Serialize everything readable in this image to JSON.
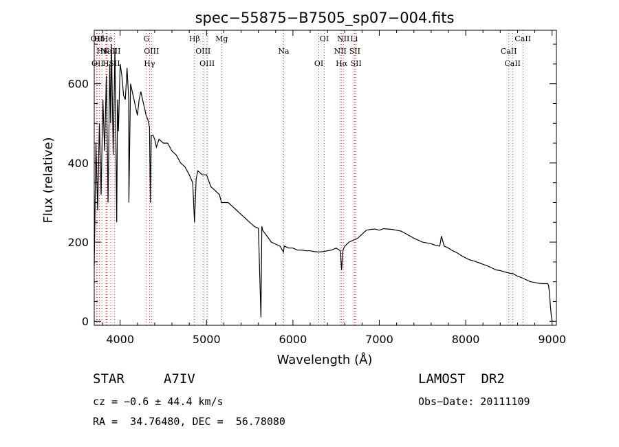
{
  "chart_data": {
    "type": "line",
    "title": "spec−55875−B7505_sp07−004.fits",
    "xlabel": "Wavelength (Å)",
    "ylabel": "Flux (relative)",
    "xlim": [
      3700,
      9050
    ],
    "ylim": [
      -10,
      735
    ],
    "xticks": [
      4000,
      5000,
      6000,
      7000,
      8000,
      9000
    ],
    "yticks": [
      0,
      200,
      400,
      600
    ],
    "grid": false,
    "series": [
      {
        "color": "#000000",
        "x": [
          3700,
          3720,
          3740,
          3760,
          3780,
          3800,
          3820,
          3840,
          3860,
          3880,
          3890,
          3900,
          3920,
          3940,
          3960,
          3970,
          3980,
          4000,
          4020,
          4040,
          4060,
          4080,
          4100,
          4101,
          4120,
          4140,
          4160,
          4180,
          4200,
          4220,
          4240,
          4260,
          4280,
          4300,
          4320,
          4340,
          4350,
          4360,
          4380,
          4400,
          4420,
          4450,
          4500,
          4550,
          4600,
          4650,
          4700,
          4750,
          4800,
          4840,
          4861,
          4880,
          4900,
          4950,
          5000,
          5050,
          5100,
          5150,
          5172,
          5200,
          5250,
          5300,
          5350,
          5400,
          5450,
          5500,
          5550,
          5600,
          5630,
          5640,
          5650,
          5700,
          5750,
          5800,
          5850,
          5890,
          5900,
          5950,
          6000,
          6050,
          6100,
          6150,
          6200,
          6250,
          6300,
          6350,
          6400,
          6450,
          6500,
          6550,
          6563,
          6580,
          6600,
          6650,
          6700,
          6750,
          6800,
          6850,
          6900,
          6950,
          7000,
          7050,
          7100,
          7150,
          7200,
          7250,
          7300,
          7350,
          7400,
          7450,
          7500,
          7550,
          7600,
          7650,
          7700,
          7720,
          7750,
          7800,
          7850,
          7900,
          7950,
          8000,
          8050,
          8100,
          8150,
          8200,
          8250,
          8300,
          8350,
          8400,
          8450,
          8500,
          8550,
          8600,
          8650,
          8700,
          8750,
          8800,
          8850,
          8900,
          8950,
          8960,
          8970,
          8980,
          8990,
          9000
        ],
        "y": [
          140,
          450,
          280,
          500,
          320,
          560,
          430,
          620,
          300,
          650,
          500,
          700,
          420,
          690,
          250,
          560,
          480,
          650,
          620,
          570,
          560,
          640,
          560,
          300,
          600,
          580,
          560,
          540,
          520,
          560,
          580,
          560,
          540,
          520,
          510,
          490,
          300,
          470,
          470,
          460,
          440,
          460,
          450,
          450,
          430,
          420,
          400,
          390,
          370,
          350,
          250,
          360,
          380,
          370,
          370,
          340,
          330,
          320,
          300,
          300,
          300,
          290,
          280,
          270,
          260,
          250,
          240,
          235,
          10,
          240,
          230,
          215,
          200,
          195,
          190,
          175,
          190,
          185,
          185,
          180,
          180,
          178,
          178,
          176,
          175,
          176,
          178,
          180,
          185,
          178,
          130,
          180,
          190,
          200,
          205,
          210,
          220,
          230,
          232,
          233,
          230,
          234,
          233,
          232,
          230,
          228,
          222,
          216,
          210,
          205,
          200,
          198,
          196,
          192,
          190,
          215,
          190,
          185,
          178,
          173,
          166,
          160,
          155,
          152,
          148,
          144,
          140,
          135,
          130,
          128,
          125,
          122,
          120,
          114,
          110,
          105,
          100,
          98,
          96,
          95,
          95,
          90,
          70,
          40,
          15,
          0
        ]
      }
    ],
    "spectral_lines": [
      {
        "label": "Hδ",
        "x": 3760
      },
      {
        "label": "K",
        "x": 3842
      },
      {
        "label": "OII",
        "x": 3739
      },
      {
        "label": "He",
        "x": 3850
      },
      {
        "label": "NeIII",
        "x": 3890
      },
      {
        "label": "SII",
        "x": 3935
      },
      {
        "label": "OII",
        "x": 3729
      },
      {
        "label": "Hε",
        "x": 3788
      },
      {
        "label": "H",
        "x": 3835
      },
      {
        "label": "G",
        "x": 4304
      },
      {
        "label": "OIII",
        "x": 4363
      },
      {
        "label": "Hγ",
        "x": 4340
      },
      {
        "label": "Hβ",
        "x": 4861
      },
      {
        "label": "OIII",
        "x": 4960
      },
      {
        "label": "OIII",
        "x": 5007
      },
      {
        "label": "Mg",
        "x": 5175
      },
      {
        "label": "Na",
        "x": 5893
      },
      {
        "label": "OI",
        "x": 6300
      },
      {
        "label": "OI",
        "x": 6363
      },
      {
        "label": "NII",
        "x": 6548
      },
      {
        "label": "Hα",
        "x": 6563
      },
      {
        "label": "NII",
        "x": 6584
      },
      {
        "label": "SII",
        "x": 6716
      },
      {
        "label": "SII",
        "x": 6731
      },
      {
        "label": "Li",
        "x": 6708
      },
      {
        "label": "CaII",
        "x": 8498
      },
      {
        "label": "CaII",
        "x": 8542
      },
      {
        "label": "CaII",
        "x": 8662
      }
    ]
  },
  "info": {
    "object_class": "STAR",
    "subclass": "A7IV",
    "survey": "LAMOST  DR2",
    "cz": "cz = −0.6 ± 44.4 km/s",
    "obs_date": "Obs−Date: 20111109",
    "coords": "RA =  34.76480, DEC =  56.78080"
  }
}
